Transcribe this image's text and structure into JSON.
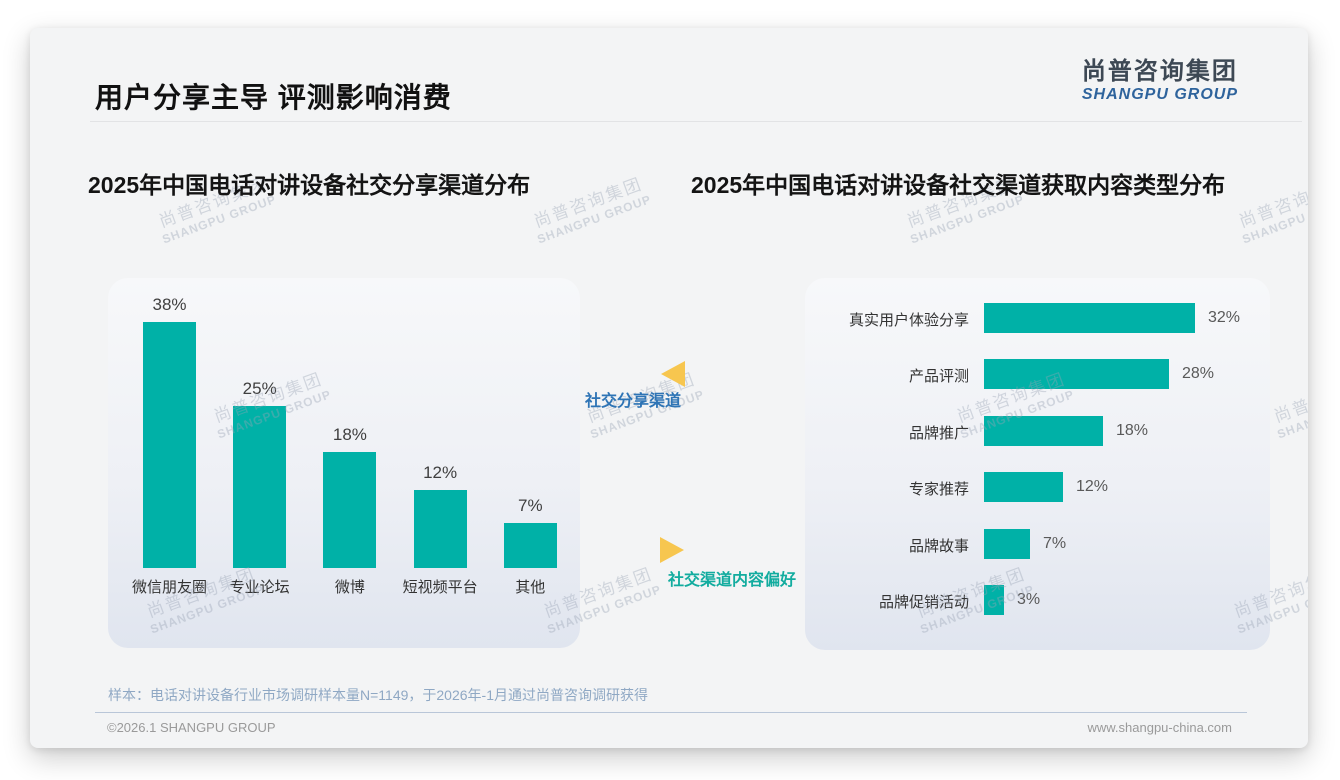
{
  "page": {
    "title": "用户分享主导 评测影响消费",
    "logo": {
      "cn": "尚普咨询集团",
      "en": "SHANGPU GROUP"
    },
    "watermark": {
      "cn": "尚普咨询集团",
      "en": "SHANGPU GROUP"
    },
    "sample_note": "样本：电话对讲设备行业市场调研样本量N=1149，于2026年-1月通过尚普咨询调研获得",
    "footer_left": "©2026.1 SHANGPU GROUP",
    "footer_right": "www.shangpu-china.com"
  },
  "annotations": {
    "share_channel_label": "社交分享渠道",
    "content_pref_label": "社交渠道内容偏好",
    "arrow_color": "#F7C64F",
    "share_channel_color": "#2E74B5",
    "content_pref_color": "#12AC9F"
  },
  "chart_data": [
    {
      "type": "bar",
      "title": "2025年中国电话对讲设备社交分享渠道分布",
      "categories": [
        "微信朋友圈",
        "专业论坛",
        "微博",
        "短视频平台",
        "其他"
      ],
      "values": [
        38,
        25,
        18,
        12,
        7
      ],
      "value_labels": [
        "38%",
        "25%",
        "18%",
        "12%",
        "7%"
      ],
      "unit": "%",
      "bar_color": "#00B1A7",
      "ylim": [
        0,
        40
      ],
      "grid": false,
      "legend": "none"
    },
    {
      "type": "bar-horizontal",
      "title": "2025年中国电话对讲设备社交渠道获取内容类型分布",
      "categories": [
        "真实用户体验分享",
        "产品评测",
        "品牌推广",
        "专家推荐",
        "品牌故事",
        "品牌促销活动"
      ],
      "values": [
        32,
        28,
        18,
        12,
        7,
        3
      ],
      "value_labels": [
        "32%",
        "28%",
        "18%",
        "12%",
        "7%",
        "3%"
      ],
      "unit": "%",
      "bar_color": "#00B1A7",
      "xlim": [
        0,
        35
      ],
      "grid": false,
      "legend": "none"
    }
  ]
}
